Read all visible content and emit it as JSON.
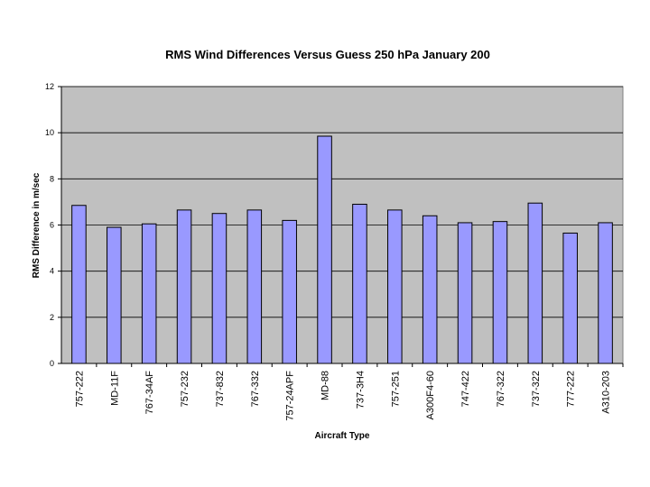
{
  "chart_data": {
    "type": "bar",
    "title": "RMS Wind Differences Versus Guess 250 hPa January 200",
    "xlabel": "Aircraft Type",
    "ylabel": "RMS Difference in m/sec",
    "categories": [
      "757-222",
      "MD-11F",
      "767-34AF",
      "757-232",
      "737-832",
      "767-332",
      "757-24APF",
      "MD-88",
      "737-3H4",
      "757-251",
      "A300F4-60",
      "747-422",
      "767-322",
      "737-322",
      "777-222",
      "A310-203"
    ],
    "values": [
      6.85,
      5.9,
      6.05,
      6.65,
      6.5,
      6.65,
      6.2,
      9.85,
      6.9,
      6.65,
      6.4,
      6.1,
      6.15,
      6.95,
      5.65,
      6.1
    ],
    "ylim": [
      0,
      12
    ],
    "yticks": [
      0,
      2,
      4,
      6,
      8,
      10,
      12
    ],
    "grid": true,
    "legend": "none",
    "colors": {
      "bar_fill": "#9999ff",
      "bar_stroke": "#000000",
      "plot_bg": "#c0c0c0",
      "grid": "#000000"
    }
  }
}
